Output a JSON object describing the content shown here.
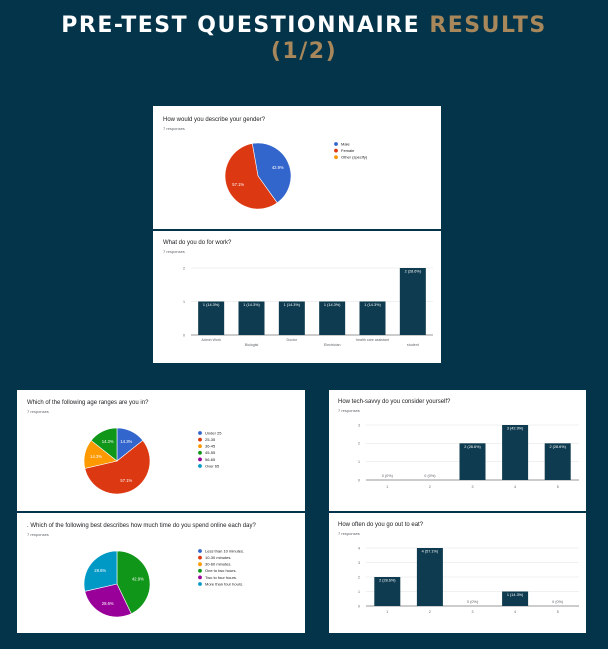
{
  "header": {
    "title_main": "PRE-TEST QUESTIONNAIRE",
    "title_accent": "RESULTS",
    "title_line2": "(1/2)"
  },
  "colors": {
    "background": "#03344a",
    "accent": "#a8875b",
    "bar": "#0e3b50"
  },
  "chart_data": [
    {
      "type": "pie",
      "title": "How would you describe your gender?",
      "subtitle": "7 responses",
      "categories": [
        "Male",
        "Female",
        "Other (specify)"
      ],
      "values": [
        42.9,
        57.1,
        0
      ],
      "labels": [
        "42.9%",
        "57.1%",
        ""
      ],
      "colors": [
        "#3366cc",
        "#dc3912",
        "#ff9900"
      ],
      "start_angle": 100,
      "legend": "right"
    },
    {
      "type": "bar",
      "title": "What do you do for work?",
      "subtitle": "7 responses",
      "categories": [
        "Admin Work",
        "Biologist",
        "Doctor",
        "Electrician",
        "health care assistant",
        "student"
      ],
      "values": [
        1,
        1,
        1,
        1,
        1,
        2
      ],
      "labels": [
        "1 (14.3%)",
        "1 (14.3%)",
        "1 (14.3%)",
        "1 (14.3%)",
        "1 (14.3%)",
        "2 (28.6%)"
      ],
      "ylim": [
        0,
        2
      ],
      "yticks": [
        "0",
        "1",
        "2"
      ]
    },
    {
      "type": "pie",
      "title": "Which of the following age ranges are you in?",
      "subtitle": "7 responses",
      "categories": [
        "Under 25",
        "25-35",
        "36-45",
        "45-55",
        "56-65",
        "Over 65"
      ],
      "values": [
        14.3,
        57.1,
        14.3,
        14.3,
        0,
        0
      ],
      "labels": [
        "14.3%",
        "57.1%",
        "14.3%",
        "14.3%",
        "",
        ""
      ],
      "colors": [
        "#3366cc",
        "#dc3912",
        "#ff9900",
        "#109618",
        "#990099",
        "#0099c6"
      ],
      "start_angle": 90,
      "legend": "right"
    },
    {
      "type": "pie",
      "title": ". Which of the following best describes how much time do you spend online each day?",
      "subtitle": "7 responses",
      "categories": [
        "Less than 10 minutes.",
        "10-30 minutes.",
        "30-60 minutes.",
        "One to two hours.",
        "Two to four hours.",
        "More than four hours."
      ],
      "values": [
        0,
        0,
        0,
        42.9,
        28.6,
        28.6
      ],
      "labels": [
        "",
        "",
        "",
        "42.9%",
        "28.6%",
        "28.6%"
      ],
      "colors": [
        "#3366cc",
        "#dc3912",
        "#ff9900",
        "#109618",
        "#990099",
        "#0099c6"
      ],
      "start_angle": 90,
      "legend": "right"
    },
    {
      "type": "bar",
      "title": "How tech-savvy do you consider yourself?",
      "subtitle": "7 responses",
      "categories": [
        "1",
        "2",
        "3",
        "4",
        "5"
      ],
      "values": [
        0,
        0,
        2,
        3,
        2
      ],
      "labels": [
        "0 (0%)",
        "0 (0%)",
        "2 (28.6%)",
        "3 (42.9%)",
        "2 (28.6%)"
      ],
      "ylim": [
        0,
        3
      ],
      "yticks": [
        "0",
        "1",
        "2",
        "3"
      ]
    },
    {
      "type": "bar",
      "title": "How often do you go out to eat?",
      "subtitle": "7 responses",
      "categories": [
        "1",
        "2",
        "3",
        "4",
        "5"
      ],
      "values": [
        2,
        4,
        0,
        1,
        0
      ],
      "labels": [
        "2 (28.6%)",
        "4 (57.1%)",
        "0 (0%)",
        "1 (14.3%)",
        "0 (0%)"
      ],
      "ylim": [
        0,
        4
      ],
      "yticks": [
        "0",
        "1",
        "2",
        "3",
        "4"
      ]
    }
  ]
}
